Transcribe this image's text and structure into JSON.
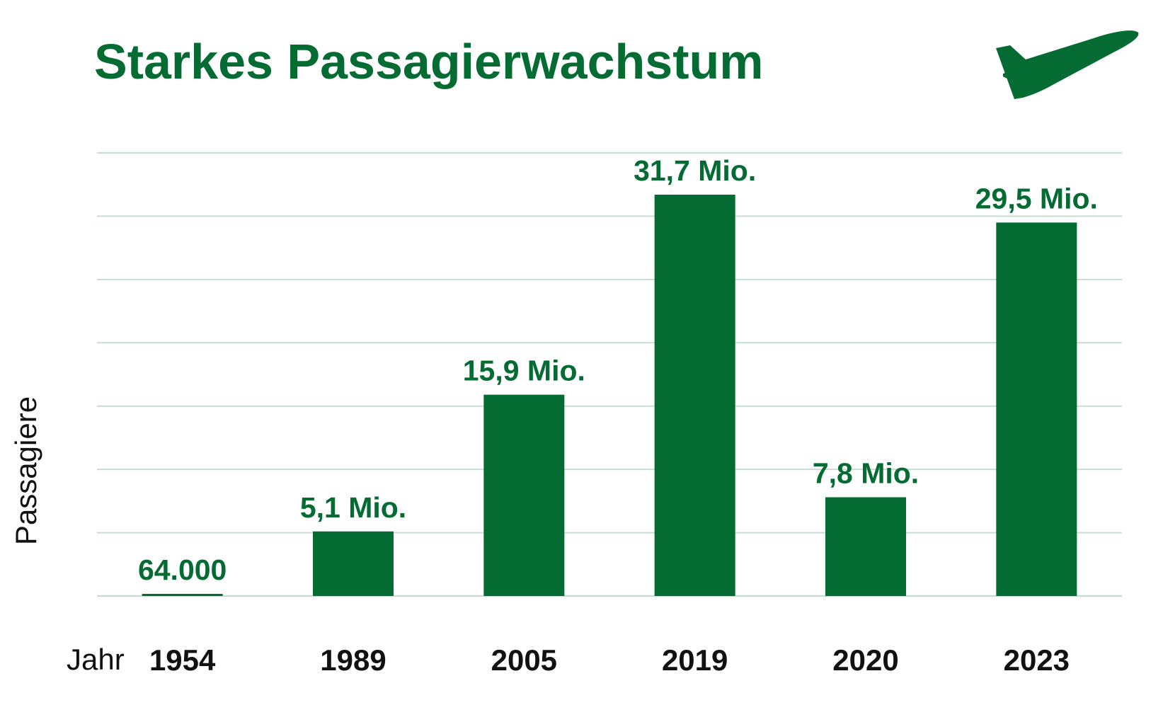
{
  "chart_data": {
    "type": "bar",
    "title": "Starkes Passagierwachstum",
    "xlabel": "Jahr",
    "ylabel": "Passagiere",
    "categories": [
      "1954",
      "1989",
      "2005",
      "2019",
      "2020",
      "2023"
    ],
    "values": [
      64000,
      5100000,
      15900000,
      31700000,
      7800000,
      29500000
    ],
    "data_labels": [
      "64.000",
      "5,1 Mio.",
      "15,9 Mio.",
      "31,7 Mio.",
      "7,8 Mio.",
      "29,5 Mio."
    ],
    "ylim": [
      0,
      35000000
    ],
    "grid": true,
    "colors": {
      "bar": "#046c33",
      "title": "#046c33",
      "grid": "#c9dcd3",
      "tick_text": "#111111"
    }
  },
  "icon": "airplane-takeoff-icon"
}
